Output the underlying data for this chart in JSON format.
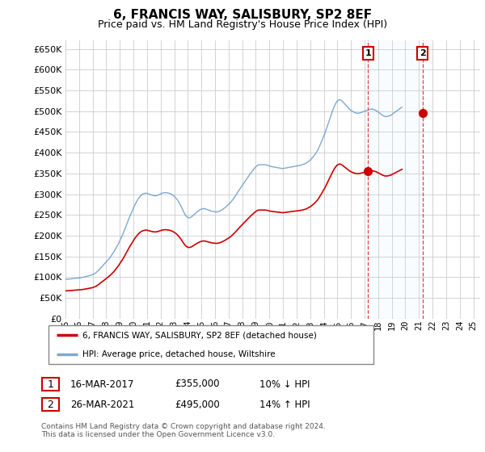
{
  "title": "6, FRANCIS WAY, SALISBURY, SP2 8EF",
  "subtitle": "Price paid vs. HM Land Registry's House Price Index (HPI)",
  "ylim": [
    0,
    670000
  ],
  "yticks": [
    0,
    50000,
    100000,
    150000,
    200000,
    250000,
    300000,
    350000,
    400000,
    450000,
    500000,
    550000,
    600000,
    650000
  ],
  "background_color": "#ffffff",
  "grid_color": "#cccccc",
  "hpi_color": "#6699cc",
  "price_color": "#cc0000",
  "shade_color": "#ddeeff",
  "legend_label_price": "6, FRANCIS WAY, SALISBURY, SP2 8EF (detached house)",
  "legend_label_hpi": "HPI: Average price, detached house, Wiltshire",
  "transaction1_label": "1",
  "transaction1_date": "16-MAR-2017",
  "transaction1_price": "£355,000",
  "transaction1_hpi": "10% ↓ HPI",
  "transaction2_label": "2",
  "transaction2_date": "26-MAR-2021",
  "transaction2_price": "£495,000",
  "transaction2_hpi": "14% ↑ HPI",
  "footnote": "Contains HM Land Registry data © Crown copyright and database right 2024.\nThis data is licensed under the Open Government Licence v3.0.",
  "sale_years": [
    2017.25,
    2021.25
  ],
  "sale_prices": [
    355000,
    495000
  ],
  "xmin": 1995.0,
  "xmax": 2025.5,
  "xticks": [
    1995,
    1996,
    1997,
    1998,
    1999,
    2000,
    2001,
    2002,
    2003,
    2004,
    2005,
    2006,
    2007,
    2008,
    2009,
    2010,
    2011,
    2012,
    2013,
    2014,
    2015,
    2016,
    2017,
    2018,
    2019,
    2020,
    2021,
    2022,
    2023,
    2024,
    2025
  ],
  "hpi_data_monthly": {
    "start_year": 1995.0,
    "step": 0.08333,
    "values": [
      95000,
      95200,
      95100,
      95300,
      95800,
      96000,
      96500,
      96800,
      97000,
      97200,
      97500,
      97800,
      98000,
      98500,
      99000,
      99500,
      100000,
      100800,
      101500,
      102200,
      103000,
      103800,
      104500,
      105000,
      106000,
      107500,
      109000,
      111000,
      113500,
      116000,
      119000,
      122000,
      125000,
      128000,
      131000,
      134000,
      137000,
      140000,
      143000,
      146500,
      150000,
      154000,
      158000,
      162000,
      167000,
      172000,
      177000,
      182000,
      188000,
      194000,
      200000,
      206000,
      213000,
      220000,
      227000,
      234000,
      241000,
      248000,
      254000,
      260000,
      267000,
      273000,
      278000,
      283000,
      288000,
      292000,
      295000,
      298000,
      300000,
      301000,
      302000,
      302500,
      302000,
      301000,
      300000,
      299000,
      298000,
      297000,
      296500,
      296000,
      296500,
      297000,
      298000,
      299500,
      301000,
      302000,
      303000,
      303500,
      304000,
      303500,
      303000,
      302500,
      302000,
      300500,
      299000,
      297000,
      295000,
      292000,
      289000,
      285500,
      281000,
      276000,
      271000,
      265000,
      259000,
      253500,
      249000,
      246000,
      244000,
      243000,
      243500,
      245000,
      247000,
      249500,
      252000,
      254500,
      257000,
      259000,
      261000,
      263000,
      264000,
      265000,
      265500,
      265000,
      264000,
      263000,
      262000,
      261000,
      260000,
      259000,
      258500,
      258000,
      257500,
      257000,
      257500,
      258000,
      259000,
      260500,
      262000,
      264000,
      266000,
      268000,
      270500,
      273000,
      275500,
      278000,
      281000,
      284500,
      288000,
      292000,
      296000,
      300000,
      304500,
      309000,
      313000,
      317000,
      321000,
      325000,
      329000,
      333000,
      337000,
      341000,
      345000,
      349000,
      352500,
      356000,
      359500,
      363000,
      366000,
      368500,
      370500,
      371000,
      371000,
      371000,
      371000,
      371000,
      371000,
      370500,
      370000,
      369000,
      368000,
      367000,
      366500,
      366000,
      365500,
      365000,
      364500,
      364000,
      363500,
      363000,
      362500,
      362000,
      362000,
      362500,
      363000,
      363500,
      364000,
      364500,
      365000,
      365500,
      366000,
      366500,
      367000,
      367500,
      368000,
      368500,
      369000,
      369500,
      370000,
      371000,
      372000,
      373000,
      374000,
      376000,
      378000,
      380000,
      382000,
      385000,
      388000,
      391500,
      395000,
      399000,
      403000,
      408000,
      414000,
      420500,
      427000,
      433500,
      440000,
      447000,
      455000,
      463000,
      471000,
      479000,
      487000,
      495000,
      503000,
      510000,
      516000,
      521000,
      525000,
      527000,
      528000,
      527000,
      525000,
      522000,
      519000,
      516000,
      513000,
      510000,
      507000,
      504000,
      502000,
      500000,
      498500,
      497000,
      496000,
      495500,
      495000,
      495500,
      496000,
      497000,
      498000,
      499000,
      500000,
      501000,
      502000,
      503000,
      504000,
      505000,
      505000,
      505000,
      504000,
      503000,
      502000,
      500000,
      498000,
      496000,
      494000,
      492000,
      490000,
      488500,
      487500,
      487000,
      487500,
      488000,
      489000,
      490000,
      492000,
      494000,
      496000,
      498000,
      500000,
      502000,
      504000,
      506000,
      508000,
      510000
    ]
  }
}
